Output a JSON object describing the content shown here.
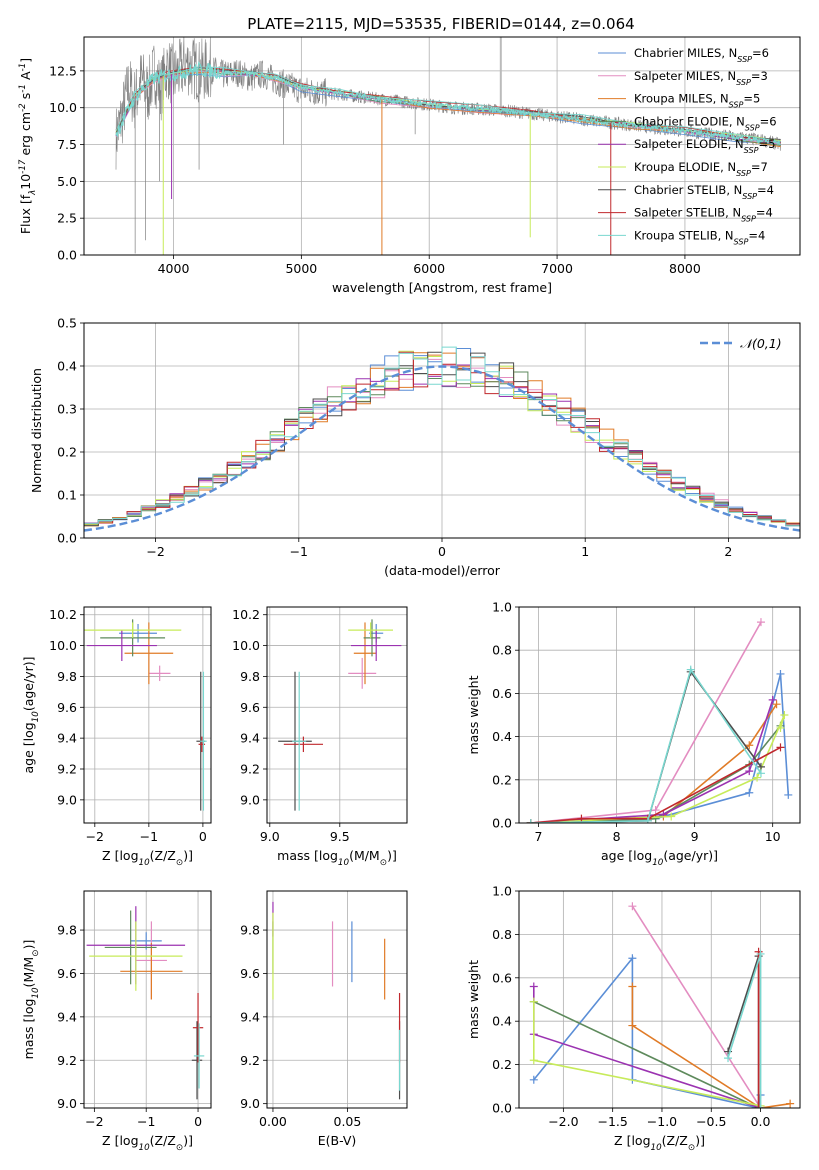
{
  "figure_title": "PLATE=2115, MJD=53535, FIBERID=0144, z=0.064",
  "series": [
    {
      "name": "Chabrier MILES",
      "nssp": "6",
      "color": "#5b8ed6"
    },
    {
      "name": "Salpeter MILES",
      "nssp": "3",
      "color": "#e38dc1"
    },
    {
      "name": "Kroupa MILES",
      "nssp": "5",
      "color": "#e07b27"
    },
    {
      "name": "Chabrier ELODIE",
      "nssp": "6",
      "color": "#5e8a5c"
    },
    {
      "name": "Salpeter ELODIE",
      "nssp": "5",
      "color": "#9b33b1"
    },
    {
      "name": "Kroupa ELODIE",
      "nssp": "7",
      "color": "#c7eb5a"
    },
    {
      "name": "Chabrier STELIB",
      "nssp": "4",
      "color": "#4d4d4d"
    },
    {
      "name": "Salpeter STELIB",
      "nssp": "4",
      "color": "#c0282d"
    },
    {
      "name": "Kroupa STELIB",
      "nssp": "4",
      "color": "#79d7cf"
    }
  ],
  "chart_data": [
    {
      "id": "spectrum",
      "type": "line",
      "xlabel": "wavelength [Angstrom, rest frame]",
      "ylabel": "Flux [f$_\\lambda$10$^{-17}$ erg cm$^{-2}$ s$^{-1}$ A$^{-1}$]",
      "xlim": [
        3300,
        8900
      ],
      "ylim": [
        0,
        14.8
      ],
      "xticks": [
        "4000",
        "5000",
        "6000",
        "7000",
        "8000"
      ],
      "yticks": [
        "0.0",
        "2.5",
        "5.0",
        "7.5",
        "10.0",
        "12.5"
      ],
      "data_color": "#808080",
      "data_x": [
        3550,
        3600,
        3650,
        3700,
        3750,
        3800,
        3850,
        3900,
        3950,
        4000,
        4100,
        4200,
        4300,
        4400,
        4500,
        4600,
        4700,
        4800,
        4900,
        5000,
        5200,
        5400,
        5600,
        5800,
        6000,
        6200,
        6400,
        6600,
        6800,
        7000,
        7200,
        7400,
        7600,
        7800,
        8000,
        8200,
        8400,
        8600,
        8750
      ],
      "data_y": [
        8.0,
        9.5,
        11.5,
        10.5,
        12.0,
        11.0,
        12.5,
        11.2,
        12.8,
        12.0,
        13.0,
        12.5,
        12.6,
        12.2,
        12.4,
        12.0,
        12.3,
        11.8,
        11.5,
        11.2,
        11.0,
        10.8,
        10.6,
        10.4,
        10.2,
        10.0,
        9.9,
        9.8,
        9.6,
        9.4,
        9.2,
        9.0,
        8.8,
        8.6,
        8.4,
        8.2,
        8.0,
        7.8,
        7.5
      ],
      "model_x": [
        3550,
        3700,
        3850,
        4000,
        4200,
        4400,
        4600,
        4800,
        5000,
        5300,
        5600,
        6000,
        6400,
        6800,
        7200,
        7600,
        8000,
        8400,
        8750
      ],
      "model_y": [
        8.2,
        10.8,
        12.0,
        12.3,
        12.6,
        12.4,
        12.3,
        12.0,
        11.4,
        11.0,
        10.6,
        10.2,
        9.9,
        9.6,
        9.2,
        8.8,
        8.4,
        8.0,
        7.6
      ],
      "spikes": [
        {
          "x": 3920,
          "y": 0.0,
          "color": "#c7eb5a"
        },
        {
          "x": 3985,
          "y": 3.8,
          "color": "#9b33b1"
        },
        {
          "x": 5630,
          "y": 0.0,
          "color": "#e07b27"
        },
        {
          "x": 6790,
          "y": 1.2,
          "color": "#c7eb5a"
        },
        {
          "x": 7420,
          "y": 0.0,
          "color": "#c0282d"
        }
      ]
    },
    {
      "id": "residuals",
      "type": "bar",
      "xlabel": "(data-model)/error",
      "ylabel": "Normed distribution",
      "xlim": [
        -2.5,
        2.5
      ],
      "ylim": [
        0,
        0.5
      ],
      "xticks": [
        "−2",
        "−1",
        "0",
        "1",
        "2"
      ],
      "yticks": [
        "0.0",
        "0.1",
        "0.2",
        "0.3",
        "0.4",
        "0.5"
      ],
      "legend": "$\\mathcal{N}(0,1)$",
      "bin_width": 0.1
    },
    {
      "id": "age_vs_z",
      "type": "scatter",
      "xlabel": "Z [log$_{10}$(Z/Z$_\\odot$)]",
      "ylabel": "age  [log$_{10}$(age/yr)]",
      "xlim": [
        -2.2,
        0.15
      ],
      "ylim": [
        8.85,
        10.25
      ],
      "xticks": [
        "−2",
        "−1",
        "0"
      ],
      "yticks": [
        "9.0",
        "9.2",
        "9.4",
        "9.6",
        "9.8",
        "10.0",
        "10.2"
      ],
      "points": [
        {
          "s": 0,
          "x": -1.2,
          "y": 10.08,
          "xe": 0.35,
          "ye": 0.06
        },
        {
          "s": 1,
          "x": -0.8,
          "y": 9.82,
          "xe": 0.2,
          "ye": 0.05
        },
        {
          "s": 2,
          "x": -1.0,
          "y": 9.95,
          "xe": 0.45,
          "ye": 0.2
        },
        {
          "s": 3,
          "x": -1.3,
          "y": 10.05,
          "xe": 0.6,
          "ye": 0.12
        },
        {
          "s": 4,
          "x": -1.5,
          "y": 10.0,
          "xe": 0.65,
          "ye": 0.1
        },
        {
          "s": 5,
          "x": -1.3,
          "y": 10.1,
          "xe": 0.9,
          "ye": 0.05
        },
        {
          "s": 6,
          "x": -0.04,
          "y": 9.38,
          "xe": 0.08,
          "ye": 0.45
        },
        {
          "s": 7,
          "x": -0.02,
          "y": 9.36,
          "xe": 0.06,
          "ye": 0.05
        },
        {
          "s": 8,
          "x": 0.01,
          "y": 9.38,
          "xe": 0.06,
          "ye": 0.45
        }
      ]
    },
    {
      "id": "age_vs_mass",
      "type": "scatter",
      "xlabel": "mass [log$_{10}$(M/M$_\\odot$)]",
      "ylabel": "",
      "xlim": [
        8.98,
        9.98
      ],
      "ylim": [
        8.85,
        10.25
      ],
      "xticks": [
        "9.0",
        "9.5"
      ],
      "yticks": [
        "9.0",
        "9.2",
        "9.4",
        "9.6",
        "9.8",
        "10.0",
        "10.2"
      ],
      "points": [
        {
          "s": 0,
          "x": 9.76,
          "y": 10.08,
          "xe": 0.05,
          "ye": 0.06
        },
        {
          "s": 1,
          "x": 9.66,
          "y": 9.82,
          "xe": 0.1,
          "ye": 0.1
        },
        {
          "s": 2,
          "x": 9.68,
          "y": 9.95,
          "xe": 0.08,
          "ye": 0.2
        },
        {
          "s": 3,
          "x": 9.73,
          "y": 10.05,
          "xe": 0.06,
          "ye": 0.12
        },
        {
          "s": 4,
          "x": 9.76,
          "y": 10.0,
          "xe": 0.18,
          "ye": 0.1
        },
        {
          "s": 5,
          "x": 9.72,
          "y": 10.1,
          "xe": 0.16,
          "ye": 0.05
        },
        {
          "s": 6,
          "x": 9.18,
          "y": 9.38,
          "xe": 0.12,
          "ye": 0.45
        },
        {
          "s": 7,
          "x": 9.24,
          "y": 9.36,
          "xe": 0.14,
          "ye": 0.05
        },
        {
          "s": 8,
          "x": 9.21,
          "y": 9.38,
          "xe": 0.05,
          "ye": 0.45
        }
      ]
    },
    {
      "id": "mw_vs_age",
      "type": "line",
      "xlabel": "age  [log$_{10}$(age/yr)]",
      "ylabel": "mass weight",
      "xlim": [
        6.75,
        10.35
      ],
      "ylim": [
        0,
        1.0
      ],
      "xticks": [
        "7",
        "8",
        "9",
        "10"
      ],
      "yticks": [
        "0.0",
        "0.2",
        "0.4",
        "0.6",
        "0.8",
        "1.0"
      ],
      "lines": [
        {
          "s": 0,
          "x": [
            6.9,
            8.5,
            9.7,
            10.1,
            10.2
          ],
          "y": [
            0.0,
            0.02,
            0.14,
            0.69,
            0.13
          ]
        },
        {
          "s": 1,
          "x": [
            6.9,
            8.5,
            9.85
          ],
          "y": [
            0.0,
            0.06,
            0.93
          ]
        },
        {
          "s": 2,
          "x": [
            6.9,
            8.6,
            9.7,
            10.05
          ],
          "y": [
            0.0,
            0.03,
            0.36,
            0.55
          ]
        },
        {
          "s": 3,
          "x": [
            6.9,
            8.5,
            9.7,
            10.1
          ],
          "y": [
            0.0,
            0.02,
            0.27,
            0.45
          ]
        },
        {
          "s": 4,
          "x": [
            6.9,
            8.6,
            9.7,
            10.0
          ],
          "y": [
            0.0,
            0.04,
            0.24,
            0.57
          ]
        },
        {
          "s": 5,
          "x": [
            6.9,
            8.7,
            9.8,
            10.15,
            10.1
          ],
          "y": [
            0.0,
            0.03,
            0.21,
            0.5,
            0.44
          ]
        },
        {
          "s": 6,
          "x": [
            6.9,
            8.4,
            8.95,
            9.85
          ],
          "y": [
            0.0,
            0.01,
            0.7,
            0.26
          ]
        },
        {
          "s": 7,
          "x": [
            6.9,
            7.55,
            8.4,
            10.1
          ],
          "y": [
            0.0,
            0.02,
            0.02,
            0.35
          ]
        },
        {
          "s": 8,
          "x": [
            6.9,
            8.4,
            8.95,
            9.85
          ],
          "y": [
            0.0,
            0.01,
            0.71,
            0.23
          ]
        }
      ]
    },
    {
      "id": "mass_vs_z",
      "type": "scatter",
      "xlabel": "Z [log$_{10}$(Z/Z$_\\odot$)]",
      "ylabel": "mass [log$_{10}$(M/M$_\\odot$)]",
      "xlim": [
        -2.2,
        0.25
      ],
      "ylim": [
        8.98,
        9.98
      ],
      "xticks": [
        "−2",
        "−1",
        "0"
      ],
      "yticks": [
        "9.0",
        "9.2",
        "9.4",
        "9.6",
        "9.8"
      ],
      "points": [
        {
          "s": 0,
          "x": -1.0,
          "y": 9.75,
          "xe": 0.3,
          "ye": 0.04
        },
        {
          "s": 1,
          "x": -0.9,
          "y": 9.66,
          "xe": 0.3,
          "ye": 0.18
        },
        {
          "s": 2,
          "x": -0.9,
          "y": 9.61,
          "xe": 0.6,
          "ye": 0.13
        },
        {
          "s": 3,
          "x": -1.3,
          "y": 9.72,
          "xe": 0.5,
          "ye": 0.17
        },
        {
          "s": 4,
          "x": -1.2,
          "y": 9.73,
          "xe": 0.95,
          "ye": 0.18
        },
        {
          "s": 5,
          "x": -1.2,
          "y": 9.68,
          "xe": 0.9,
          "ye": 0.16
        },
        {
          "s": 6,
          "x": -0.02,
          "y": 9.2,
          "xe": 0.1,
          "ye": 0.18
        },
        {
          "s": 7,
          "x": 0.0,
          "y": 9.35,
          "xe": 0.1,
          "ye": 0.16
        },
        {
          "s": 8,
          "x": 0.02,
          "y": 9.22,
          "xe": 0.1,
          "ye": 0.15
        }
      ]
    },
    {
      "id": "mass_vs_ebv",
      "type": "scatter",
      "xlabel": "E(B-V)",
      "ylabel": "",
      "xlim": [
        -0.004,
        0.09
      ],
      "ylim": [
        8.98,
        9.98
      ],
      "xticks": [
        "0.00",
        "0.05"
      ],
      "yticks": [
        "9.0",
        "9.2",
        "9.4",
        "9.6",
        "9.8"
      ],
      "points": [
        {
          "s": 0,
          "x": 0.053,
          "y": 9.7,
          "xe": 0,
          "ye": 0.14
        },
        {
          "s": 1,
          "x": 0.04,
          "y": 9.69,
          "xe": 0,
          "ye": 0.15
        },
        {
          "s": 2,
          "x": 0.075,
          "y": 9.62,
          "xe": 0,
          "ye": 0.14
        },
        {
          "s": 3,
          "x": 0.0,
          "y": 9.72,
          "xe": 0,
          "ye": 0.12
        },
        {
          "s": 4,
          "x": 0.0,
          "y": 9.85,
          "xe": 0,
          "ye": 0.08
        },
        {
          "s": 5,
          "x": 0.0,
          "y": 9.68,
          "xe": 0,
          "ye": 0.2
        },
        {
          "s": 6,
          "x": 0.085,
          "y": 9.2,
          "xe": 0,
          "ye": 0.18
        },
        {
          "s": 7,
          "x": 0.085,
          "y": 9.35,
          "xe": 0,
          "ye": 0.16
        },
        {
          "s": 8,
          "x": 0.085,
          "y": 9.2,
          "xe": 0,
          "ye": 0.14
        }
      ]
    },
    {
      "id": "mw_vs_z",
      "type": "line",
      "xlabel": "Z [log$_{10}$(Z/Z$_\\odot$)]",
      "ylabel": "mass weight",
      "xlim": [
        -2.45,
        0.4
      ],
      "ylim": [
        0,
        1.0
      ],
      "xticks": [
        "−2.0",
        "−1.5",
        "−1.0",
        "−0.5",
        "0.0"
      ],
      "yticks": [
        "0.0",
        "0.2",
        "0.4",
        "0.6",
        "0.8",
        "1.0"
      ],
      "lines": [
        {
          "s": 0,
          "x": [
            -2.3,
            -1.3,
            -1.3,
            -0.02,
            0.0
          ],
          "y": [
            0.13,
            0.69,
            0.13,
            0.0,
            0.06
          ]
        },
        {
          "s": 1,
          "x": [
            -1.3,
            0.0
          ],
          "y": [
            0.93,
            0.0
          ]
        },
        {
          "s": 2,
          "x": [
            -1.3,
            -1.3,
            0.0,
            0.3
          ],
          "y": [
            0.56,
            0.38,
            0.0,
            0.02
          ]
        },
        {
          "s": 3,
          "x": [
            -2.3,
            -0.02
          ],
          "y": [
            0.49,
            0.0
          ]
        },
        {
          "s": 4,
          "x": [
            -2.3,
            -2.3,
            0.0
          ],
          "y": [
            0.56,
            0.34,
            0.0
          ]
        },
        {
          "s": 5,
          "x": [
            -2.3,
            -2.3,
            0.0,
            0.0
          ],
          "y": [
            0.49,
            0.22,
            0.01,
            0.0
          ]
        },
        {
          "s": 6,
          "x": [
            -0.33,
            -0.02,
            -0.02
          ],
          "y": [
            0.26,
            0.7,
            0.0
          ]
        },
        {
          "s": 7,
          "x": [
            -0.02,
            -0.02
          ],
          "y": [
            0.72,
            0.0
          ]
        },
        {
          "s": 8,
          "x": [
            -0.33,
            0.0,
            0.0
          ],
          "y": [
            0.23,
            0.71,
            0.0
          ]
        }
      ]
    }
  ]
}
